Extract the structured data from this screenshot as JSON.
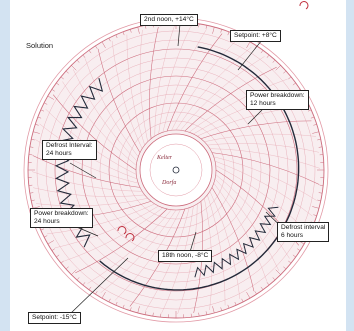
{
  "solution_label": "Solution",
  "callouts": {
    "noon_2nd": "2nd noon, +14°C",
    "setpoint_top": "Setpoint: +8°C",
    "power_breakdown_12": [
      "Power breakdown:",
      "12 hours"
    ],
    "defrost_24": [
      "Defrost Interval:",
      "24 hours"
    ],
    "power_breakdown_24": [
      "Power breakdown:",
      "24 hours"
    ],
    "defrost_6": [
      "Defrost interval",
      "6 hours"
    ],
    "noon_18th": "18th noon, -8°C",
    "setpoint_bottom": "Setpoint: -15°C"
  },
  "center": {
    "brand": "Kelter",
    "subtitle": "Dorfa"
  },
  "colors": {
    "disc": "#f8eef0",
    "grid": "#e29aa6",
    "grid_strong": "#cc6b7c",
    "trace": "#232a3a",
    "frame": "#d3e3f2"
  }
}
